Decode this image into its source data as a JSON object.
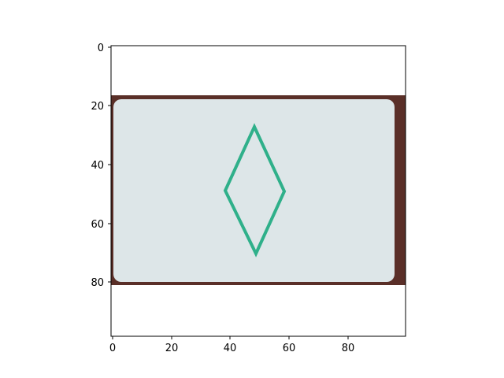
{
  "figure": {
    "x_ticks": [
      "0",
      "20",
      "40",
      "60",
      "80"
    ],
    "y_ticks": [
      "0",
      "20",
      "40",
      "60",
      "80"
    ],
    "image": {
      "width": 100,
      "height": 100,
      "card_rows": [
        17,
        81
      ],
      "card_colors": {
        "border": "#5a2f28",
        "face": "#dde6e8",
        "symbol": "#2fb08a"
      },
      "symbol": "diamond-outline",
      "symbol_count": 1
    }
  }
}
